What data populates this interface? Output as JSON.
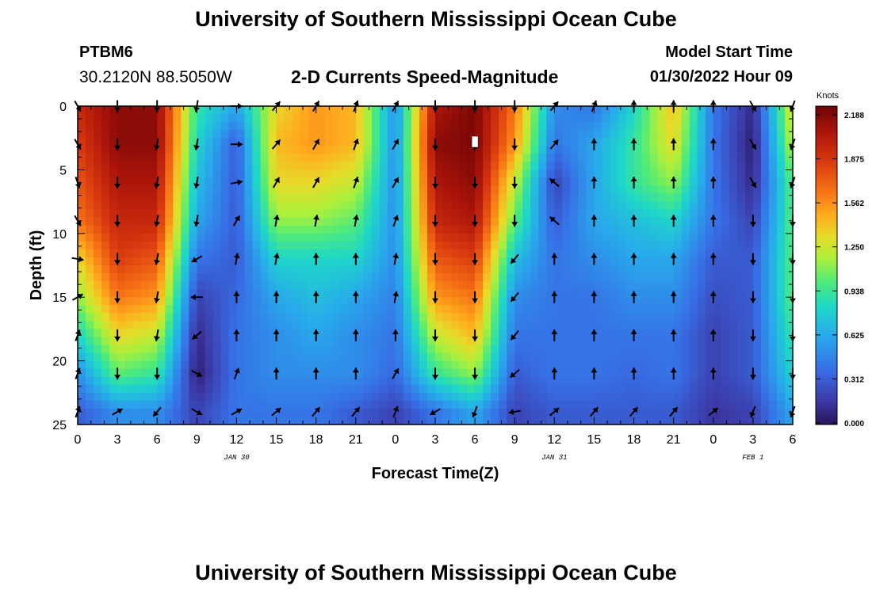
{
  "header": {
    "title": "University of Southern Mississippi Ocean Cube",
    "station_id": "PTBM6",
    "coords": "30.2120N  88.5050W",
    "subtitle": "2-D Currents Speed-Magnitude",
    "model_start_label": "Model Start Time",
    "model_start_value": "01/30/2022 Hour 09"
  },
  "footer": {
    "title": "University of Southern Mississippi Ocean Cube"
  },
  "chart_data": {
    "type": "heatmap",
    "title": "2-D Currents Speed-Magnitude",
    "xlabel": "Forecast Time(Z)",
    "ylabel": "Depth (ft)",
    "x_hours": [
      0,
      3,
      6,
      9,
      12,
      15,
      18,
      21,
      24,
      27,
      30,
      33,
      36,
      39,
      42,
      45,
      48,
      51,
      54
    ],
    "x_tick_labels": [
      "0",
      "3",
      "6",
      "9",
      "12",
      "15",
      "18",
      "21",
      "0",
      "3",
      "6",
      "9",
      "12",
      "15",
      "18",
      "21",
      "0",
      "3",
      "6"
    ],
    "date_labels": [
      {
        "hour": 12,
        "text": "JAN 30"
      },
      {
        "hour": 36,
        "text": "JAN 31"
      },
      {
        "hour": 51,
        "text": "FEB 1"
      }
    ],
    "depths_ft": [
      0,
      3,
      6,
      9,
      12,
      15,
      18,
      21,
      24
    ],
    "y_ticks": [
      0,
      5,
      10,
      15,
      20,
      25
    ],
    "ylim": [
      25,
      0
    ],
    "xlim": [
      0,
      54
    ],
    "colorbar": {
      "title": "Knots",
      "ticks": [
        "2.188",
        "1.875",
        "1.562",
        "1.250",
        "0.938",
        "0.625",
        "0.312",
        "0.000"
      ],
      "range": [
        0,
        2.188
      ]
    },
    "speed_knots": [
      [
        1.9,
        2.1,
        2.1,
        0.9,
        0.6,
        1.3,
        1.5,
        1.4,
        0.5,
        2.0,
        2.15,
        1.6,
        0.5,
        0.4,
        0.8,
        1.4,
        0.4,
        0.1,
        1.3
      ],
      [
        1.8,
        2.1,
        2.1,
        0.8,
        0.3,
        1.4,
        1.5,
        1.4,
        0.5,
        2.1,
        2.15,
        1.5,
        0.4,
        0.6,
        0.9,
        1.3,
        0.4,
        0.05,
        1.2
      ],
      [
        1.7,
        2.0,
        2.0,
        0.7,
        0.3,
        1.3,
        1.3,
        1.2,
        0.5,
        2.0,
        2.1,
        1.2,
        0.2,
        0.6,
        0.9,
        1.1,
        0.4,
        0.1,
        1.0
      ],
      [
        1.6,
        1.9,
        1.9,
        0.6,
        0.3,
        1.1,
        1.1,
        1.0,
        0.5,
        1.9,
        2.0,
        1.0,
        0.3,
        0.6,
        0.7,
        0.8,
        0.4,
        0.2,
        1.0
      ],
      [
        1.3,
        1.8,
        1.7,
        0.4,
        0.3,
        0.8,
        0.8,
        0.8,
        0.5,
        1.7,
        1.8,
        0.7,
        0.4,
        0.5,
        0.6,
        0.6,
        0.3,
        0.3,
        1.0
      ],
      [
        1.1,
        1.6,
        1.5,
        0.2,
        0.35,
        0.6,
        0.7,
        0.6,
        0.45,
        1.5,
        1.6,
        0.5,
        0.4,
        0.4,
        0.5,
        0.5,
        0.25,
        0.3,
        1.0
      ],
      [
        0.8,
        1.3,
        1.2,
        0.1,
        0.4,
        0.5,
        0.6,
        0.5,
        0.4,
        1.2,
        1.4,
        0.4,
        0.4,
        0.4,
        0.4,
        0.4,
        0.2,
        0.3,
        0.9
      ],
      [
        0.5,
        1.0,
        0.9,
        0.05,
        0.4,
        0.5,
        0.5,
        0.5,
        0.35,
        0.9,
        1.1,
        0.3,
        0.4,
        0.4,
        0.35,
        0.4,
        0.2,
        0.3,
        0.8
      ],
      [
        0.3,
        0.5,
        0.5,
        0.2,
        0.4,
        0.4,
        0.4,
        0.3,
        0.2,
        0.4,
        0.6,
        0.2,
        0.3,
        0.3,
        0.3,
        0.3,
        0.15,
        0.2,
        0.6
      ]
    ],
    "direction_deg": [
      [
        150,
        180,
        180,
        190,
        90,
        40,
        30,
        20,
        30,
        180,
        180,
        180,
        40,
        20,
        0,
        0,
        0,
        150,
        200
      ],
      [
        150,
        180,
        190,
        190,
        90,
        40,
        30,
        20,
        30,
        180,
        180,
        180,
        40,
        0,
        0,
        0,
        0,
        150,
        200
      ],
      [
        160,
        180,
        190,
        190,
        80,
        30,
        30,
        20,
        30,
        180,
        180,
        180,
        310,
        0,
        0,
        0,
        0,
        150,
        200
      ],
      [
        150,
        180,
        190,
        190,
        30,
        10,
        10,
        10,
        20,
        180,
        180,
        180,
        310,
        0,
        0,
        0,
        0,
        180,
        180
      ],
      [
        100,
        180,
        190,
        240,
        10,
        10,
        0,
        0,
        10,
        180,
        180,
        220,
        0,
        0,
        0,
        0,
        0,
        180,
        180
      ],
      [
        60,
        180,
        190,
        270,
        0,
        0,
        0,
        0,
        10,
        180,
        180,
        220,
        0,
        0,
        0,
        0,
        0,
        180,
        180
      ],
      [
        20,
        180,
        190,
        230,
        0,
        0,
        0,
        0,
        0,
        180,
        180,
        220,
        0,
        0,
        0,
        0,
        0,
        180,
        180
      ],
      [
        20,
        180,
        180,
        120,
        20,
        0,
        0,
        0,
        30,
        180,
        180,
        230,
        0,
        0,
        0,
        0,
        0,
        180,
        180
      ],
      [
        20,
        60,
        220,
        120,
        60,
        50,
        40,
        40,
        20,
        240,
        200,
        260,
        50,
        40,
        40,
        40,
        50,
        200,
        200
      ]
    ],
    "marker": {
      "hour": 30,
      "depth_ft": 2.8
    }
  }
}
